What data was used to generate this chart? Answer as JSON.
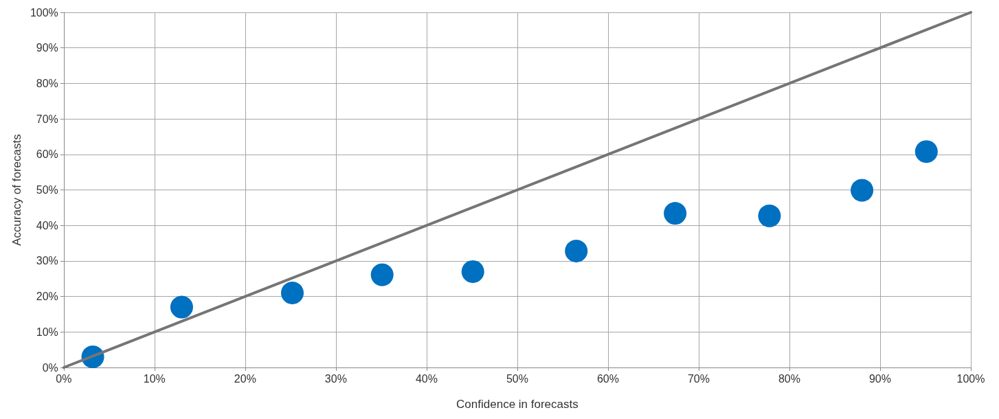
{
  "chart_data": {
    "type": "scatter",
    "xlabel": "Confidence in forecasts",
    "ylabel": "Accuracy of forecasts",
    "grid": true,
    "marker": "circle",
    "xlim": [
      0,
      100
    ],
    "ylim": [
      0,
      100
    ],
    "xticks": [
      {
        "value": 0,
        "label": "0%"
      },
      {
        "value": 10,
        "label": "10%"
      },
      {
        "value": 20,
        "label": "20%"
      },
      {
        "value": 30,
        "label": "30%"
      },
      {
        "value": 40,
        "label": "40%"
      },
      {
        "value": 50,
        "label": "50%"
      },
      {
        "value": 60,
        "label": "60%"
      },
      {
        "value": 70,
        "label": "70%"
      },
      {
        "value": 80,
        "label": "80%"
      },
      {
        "value": 90,
        "label": "90%"
      },
      {
        "value": 100,
        "label": "100%"
      }
    ],
    "yticks": [
      {
        "value": 0,
        "label": "0%"
      },
      {
        "value": 10,
        "label": "10%"
      },
      {
        "value": 20,
        "label": "20%"
      },
      {
        "value": 30,
        "label": "30%"
      },
      {
        "value": 40,
        "label": "40%"
      },
      {
        "value": 50,
        "label": "50%"
      },
      {
        "value": 60,
        "label": "60%"
      },
      {
        "value": 70,
        "label": "70%"
      },
      {
        "value": 80,
        "label": "80%"
      },
      {
        "value": 90,
        "label": "90%"
      },
      {
        "value": 100,
        "label": "100%"
      }
    ],
    "series": [
      {
        "type": "line",
        "color": "#757575",
        "marker": "none",
        "line_style": "solid",
        "x": [
          0,
          100
        ],
        "values": [
          0,
          100
        ]
      },
      {
        "color": "#0070c0",
        "x": [
          3.2,
          13.0,
          25.2,
          35.1,
          45.1,
          56.5,
          67.4,
          77.8,
          88.0,
          95.1
        ],
        "values": [
          3.0,
          17.0,
          21.0,
          26.1,
          27.0,
          32.8,
          43.4,
          42.7,
          49.9,
          60.8
        ]
      }
    ]
  }
}
